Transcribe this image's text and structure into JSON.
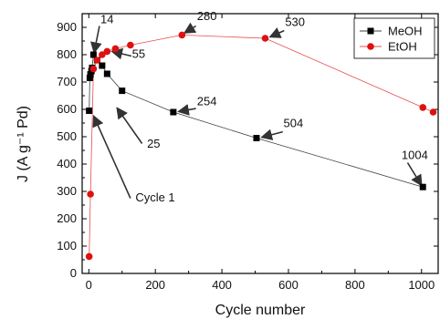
{
  "chart_data": {
    "type": "scatter",
    "xlabel": "Cycle number",
    "ylabel": "J (A g⁻¹ Pd)",
    "xlim": [
      -20,
      1050
    ],
    "ylim": [
      0,
      950
    ],
    "xticks": [
      0,
      200,
      400,
      600,
      800,
      1000
    ],
    "yticks": [
      0,
      100,
      200,
      300,
      400,
      500,
      600,
      700,
      800,
      900
    ],
    "legend": "top-right",
    "series": [
      {
        "name": "MeOH",
        "color": "#000000",
        "marker": "square",
        "points": [
          [
            1,
            595
          ],
          [
            3,
            715
          ],
          [
            5,
            728
          ],
          [
            8,
            740
          ],
          [
            10,
            752
          ],
          [
            14,
            800
          ],
          [
            25,
            780
          ],
          [
            40,
            760
          ],
          [
            55,
            730
          ],
          [
            100,
            668
          ],
          [
            254,
            590
          ],
          [
            504,
            495
          ],
          [
            1004,
            316
          ]
        ]
      },
      {
        "name": "EtOH",
        "color": "#dd1111",
        "marker": "circle",
        "points": [
          [
            1,
            62
          ],
          [
            5,
            290
          ],
          [
            14,
            748
          ],
          [
            25,
            780
          ],
          [
            40,
            800
          ],
          [
            55,
            812
          ],
          [
            80,
            822
          ],
          [
            125,
            835
          ],
          [
            280,
            872
          ],
          [
            530,
            860
          ],
          [
            1004,
            607
          ],
          [
            1035,
            590
          ]
        ]
      }
    ],
    "annotations": [
      {
        "label": "14",
        "text_x": 35,
        "text_y": 915,
        "arrow_from": [
          32,
          905
        ],
        "arrow_to": [
          16,
          808
        ]
      },
      {
        "label": "280",
        "text_x": 325,
        "text_y": 926,
        "arrow_from": [
          322,
          905
        ],
        "arrow_to": [
          288,
          880
        ]
      },
      {
        "label": "530",
        "text_x": 590,
        "text_y": 905,
        "arrow_from": [
          587,
          888
        ],
        "arrow_to": [
          545,
          865
        ]
      },
      {
        "label": "55",
        "text_x": 130,
        "text_y": 788,
        "arrow_from": [
          128,
          795
        ],
        "arrow_to": [
          70,
          812
        ]
      },
      {
        "label": "254",
        "text_x": 325,
        "text_y": 615,
        "arrow_from": [
          322,
          603
        ],
        "arrow_to": [
          270,
          592
        ]
      },
      {
        "label": "504",
        "text_x": 585,
        "text_y": 535,
        "arrow_from": [
          583,
          518
        ],
        "arrow_to": [
          520,
          498
        ]
      },
      {
        "label": "25",
        "text_x": 175,
        "text_y": 460,
        "arrow_from": [
          160,
          475
        ],
        "arrow_to": [
          85,
          605
        ]
      },
      {
        "label": "1004",
        "text_x": 940,
        "text_y": 418,
        "arrow_from": [
          958,
          405
        ],
        "arrow_to": [
          1000,
          322
        ]
      },
      {
        "label": "Cycle 1",
        "text_x": 140,
        "text_y": 263,
        "arrow_from": [
          125,
          275
        ],
        "arrow_to": [
          15,
          575
        ]
      }
    ]
  }
}
